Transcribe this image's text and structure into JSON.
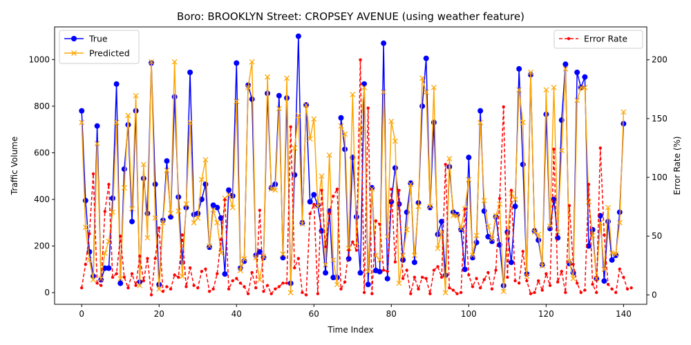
{
  "chart_data": {
    "type": "line",
    "title": "Boro: BROOKLYN Street: CROPSEY AVENUE (using weather feature)",
    "xlabel": "Time Index",
    "ylabel_left": "Traffic Volume",
    "ylabel_right": "Error Rate (%)",
    "xlim": [
      -7,
      146
    ],
    "ylim_left": [
      -50,
      1140
    ],
    "ylim_right": [
      -8,
      228
    ],
    "x_ticks": [
      0,
      20,
      40,
      60,
      80,
      100,
      120,
      140
    ],
    "y_ticks_left": [
      0,
      200,
      400,
      600,
      800,
      1000
    ],
    "y_ticks_right": [
      0,
      50,
      100,
      150,
      200
    ],
    "legend_left": "upper-left",
    "legend_right": "upper-right",
    "series": [
      {
        "name": "True",
        "axis": "left",
        "color": "#0000ff",
        "marker": "o",
        "values": [
          780,
          395,
          175,
          70,
          715,
          55,
          105,
          105,
          405,
          895,
          40,
          530,
          720,
          305,
          780,
          45,
          490,
          340,
          985,
          465,
          35,
          310,
          565,
          325,
          840,
          410,
          130,
          365,
          945,
          335,
          340,
          400,
          465,
          195,
          375,
          365,
          320,
          80,
          440,
          415,
          985,
          105,
          135,
          890,
          830,
          160,
          175,
          150,
          855,
          450,
          465,
          845,
          150,
          835,
          40,
          505,
          1100,
          300,
          805,
          390,
          420,
          375,
          265,
          85,
          350,
          65,
          65,
          750,
          615,
          145,
          580,
          325,
          85,
          895,
          35,
          450,
          95,
          90,
          1070,
          60,
          390,
          535,
          380,
          140,
          345,
          470,
          130,
          385,
          800,
          1005,
          365,
          730,
          250,
          305,
          75,
          540,
          345,
          335,
          270,
          100,
          580,
          150,
          215,
          780,
          350,
          240,
          220,
          325,
          205,
          30,
          260,
          130,
          370,
          960,
          550,
          80,
          935,
          265,
          225,
          120,
          765,
          275,
          400,
          235,
          740,
          980,
          125,
          85,
          945,
          880,
          925,
          200,
          270,
          60,
          330,
          50,
          305,
          140,
          160,
          345,
          725
        ]
      },
      {
        "name": "Predicted",
        "axis": "left",
        "color": "#ffa500",
        "marker": "x",
        "values": [
          730,
          280,
          140,
          55,
          640,
          60,
          170,
          220,
          345,
          730,
          60,
          450,
          760,
          360,
          845,
          30,
          550,
          235,
          990,
          320,
          15,
          300,
          525,
          340,
          990,
          350,
          70,
          380,
          730,
          300,
          320,
          485,
          570,
          200,
          355,
          300,
          170,
          405,
          420,
          365,
          820,
          95,
          145,
          880,
          990,
          150,
          55,
          155,
          925,
          445,
          440,
          790,
          165,
          920,
          0,
          620,
          760,
          295,
          805,
          660,
          745,
          370,
          500,
          120,
          590,
          140,
          35,
          715,
          680,
          190,
          850,
          200,
          700,
          880,
          90,
          445,
          160,
          140,
          860,
          240,
          735,
          650,
          40,
          160,
          270,
          465,
          160,
          370,
          920,
          860,
          370,
          880,
          190,
          260,
          0,
          575,
          330,
          330,
          275,
          360,
          485,
          160,
          245,
          730,
          395,
          285,
          230,
          330,
          380,
          5,
          240,
          425,
          400,
          870,
          730,
          70,
          945,
          260,
          250,
          115,
          870,
          285,
          880,
          260,
          610,
          960,
          135,
          60,
          825,
          880,
          880,
          390,
          245,
          60,
          300,
          100,
          365,
          170,
          165,
          300,
          775
        ]
      },
      {
        "name": "Error Rate",
        "axis": "right",
        "color": "#ff0000",
        "marker": ".",
        "linestyle": "dashed",
        "values": [
          6,
          26,
          52,
          103,
          10,
          8,
          71,
          94,
          15,
          18,
          50,
          15,
          6,
          18,
          8,
          33,
          12,
          31,
          0,
          31,
          57,
          3,
          7,
          5,
          17,
          15,
          51,
          7,
          23,
          8,
          6,
          20,
          22,
          3,
          5,
          18,
          47,
          81,
          5,
          12,
          14,
          10,
          7,
          1,
          19,
          6,
          72,
          3,
          8,
          1,
          5,
          7,
          10,
          10,
          143,
          23,
          31,
          2,
          0,
          69,
          77,
          1,
          89,
          41,
          69,
          84,
          90,
          5,
          11,
          38,
          45,
          38,
          200,
          2,
          159,
          1,
          63,
          60,
          21,
          20,
          90,
          28,
          89,
          14,
          21,
          1,
          15,
          5,
          15,
          14,
          1,
          21,
          24,
          15,
          111,
          6,
          4,
          1,
          2,
          73,
          17,
          7,
          14,
          6,
          13,
          19,
          5,
          21,
          82,
          160,
          15,
          89,
          12,
          10,
          37,
          12,
          1,
          2,
          12,
          4,
          18,
          8,
          124,
          11,
          20,
          2,
          76,
          26,
          10,
          2,
          4,
          94,
          9,
          2,
          125,
          51,
          9,
          5,
          2,
          22,
          15,
          5,
          6
        ]
      }
    ]
  }
}
